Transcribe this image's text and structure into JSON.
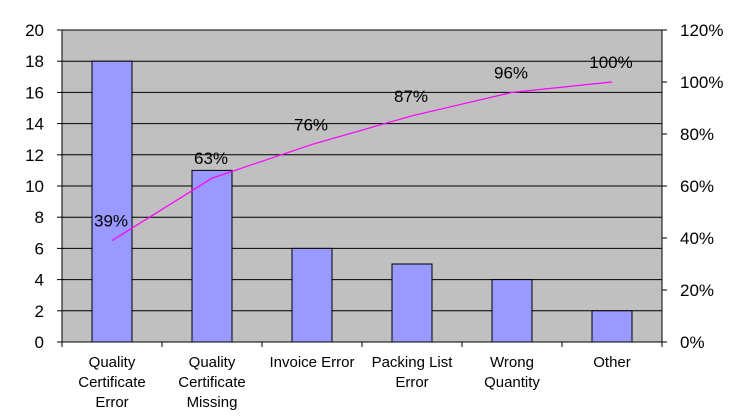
{
  "chart_data": {
    "type": "bar",
    "title": "",
    "xlabel": "",
    "ylabel": "",
    "categories": [
      [
        "Quality",
        "Certificate",
        "Error"
      ],
      [
        "Quality",
        "Certificate",
        "Missing"
      ],
      [
        "Invoice Error"
      ],
      [
        "Packing List",
        "Error"
      ],
      [
        "Wrong",
        "Quantity"
      ],
      [
        "Other"
      ]
    ],
    "series": [
      {
        "type": "bar",
        "values": [
          18,
          11,
          6,
          5,
          4,
          2
        ],
        "axis": "left"
      },
      {
        "type": "line",
        "values": [
          39,
          63,
          76,
          87,
          96,
          100
        ],
        "axis": "right",
        "labels": [
          "39%",
          "63%",
          "76%",
          "87%",
          "96%",
          "100%"
        ]
      }
    ],
    "ylim": [
      0,
      20
    ],
    "y_ticks": [
      "0",
      "2",
      "4",
      "6",
      "8",
      "10",
      "12",
      "14",
      "16",
      "18",
      "20"
    ],
    "y2lim": [
      0,
      120
    ],
    "y2_ticks": [
      "0%",
      "20%",
      "40%",
      "60%",
      "80%",
      "100%",
      "120%"
    ],
    "grid": true,
    "colors": {
      "plot_bg": "#c0c0c0",
      "bar_fill": "#9999ff",
      "bar_stroke": "#000000",
      "line": "#ff00ff",
      "grid": "#000000"
    }
  }
}
